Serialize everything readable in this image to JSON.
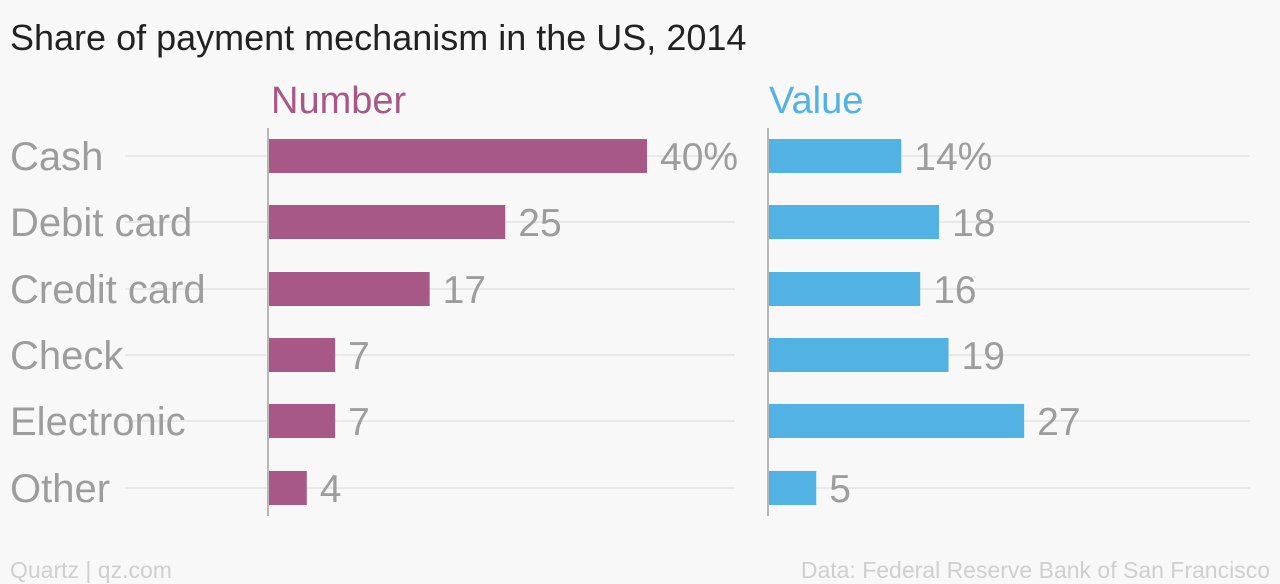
{
  "chart_data": {
    "type": "bar",
    "title": "Share of payment mechanism in the US, 2014",
    "categories": [
      "Cash",
      "Debit card",
      "Credit card",
      "Check",
      "Electronic",
      "Other"
    ],
    "series": [
      {
        "name": "Number",
        "values": [
          40,
          25,
          17,
          7,
          7,
          4
        ],
        "labels": [
          "40%",
          "25",
          "17",
          "7",
          "7",
          "4"
        ],
        "color": "#a85887"
      },
      {
        "name": "Value",
        "values": [
          14,
          18,
          16,
          19,
          27,
          5
        ],
        "labels": [
          "14%",
          "18",
          "16",
          "19",
          "27",
          "5"
        ],
        "color": "#53b2e4"
      }
    ],
    "orientation": "horizontal",
    "grid": true,
    "legend": "none"
  },
  "footer": {
    "credit": "Quartz | qz.com",
    "source": "Data: Federal Reserve Bank of San Francisco"
  }
}
